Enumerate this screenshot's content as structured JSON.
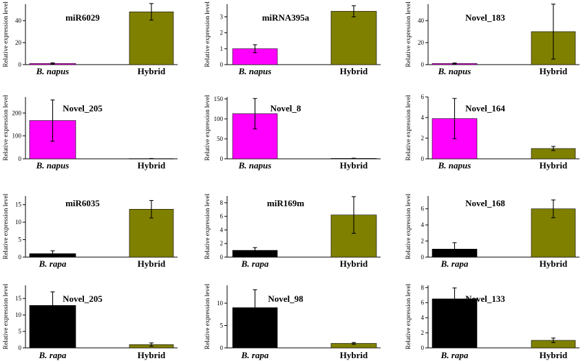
{
  "colors": {
    "bnapus": "#ff00ff",
    "brapa": "#000000",
    "hybrid": "#808000",
    "axis": "#000000"
  },
  "chart_data": [
    {
      "type": "bar",
      "title": "miR6029",
      "ylabel": "Relative expression level",
      "ylim": [
        0,
        55
      ],
      "yticks": [
        0,
        20,
        40
      ],
      "categories": [
        "B. napus",
        "Hybrid"
      ],
      "values": [
        1,
        48
      ],
      "errors": [
        0.6,
        7.5
      ],
      "colors": [
        "bnapus",
        "hybrid"
      ]
    },
    {
      "type": "bar",
      "title": "miRNA395a",
      "ylabel": "Relative expression level",
      "ylim": [
        0,
        3.8
      ],
      "yticks": [
        0,
        1,
        2,
        3
      ],
      "categories": [
        "B. napus",
        "Hybrid"
      ],
      "values": [
        1,
        3.35
      ],
      "errors": [
        0.25,
        0.35
      ],
      "colors": [
        "bnapus",
        "hybrid"
      ]
    },
    {
      "type": "bar",
      "title": "Novel_183",
      "ylabel": "Relative expression level",
      "ylim": [
        0,
        55
      ],
      "yticks": [
        0,
        20,
        40
      ],
      "categories": [
        "B. napus",
        "Hybrid"
      ],
      "values": [
        1,
        30
      ],
      "errors": [
        0.5,
        25
      ],
      "colors": [
        "bnapus",
        "hybrid"
      ]
    },
    {
      "type": "bar",
      "title": "Novel_205",
      "ylabel": "Relative expression level",
      "ylim": [
        0,
        270
      ],
      "yticks": [
        0,
        100,
        200
      ],
      "categories": [
        "B. napus",
        "Hybrid"
      ],
      "values": [
        167,
        1
      ],
      "errors": [
        90,
        0.5
      ],
      "colors": [
        "bnapus",
        "hybrid"
      ]
    },
    {
      "type": "bar",
      "title": "Novel_8",
      "ylabel": "Relative expression level",
      "ylim": [
        0,
        155
      ],
      "yticks": [
        0,
        50,
        100,
        150
      ],
      "categories": [
        "B. napus",
        "Hybrid"
      ],
      "values": [
        113,
        1
      ],
      "errors": [
        38,
        0.5
      ],
      "colors": [
        "bnapus",
        "hybrid"
      ]
    },
    {
      "type": "bar",
      "title": "Novel_164",
      "ylabel": "Relative expression level",
      "ylim": [
        0,
        6
      ],
      "yticks": [
        0,
        2,
        4,
        6
      ],
      "categories": [
        "B. napus",
        "Hybrid"
      ],
      "values": [
        3.9,
        1
      ],
      "errors": [
        1.95,
        0.2
      ],
      "colors": [
        "bnapus",
        "hybrid"
      ]
    },
    {
      "type": "bar",
      "title": "miR6035",
      "ylabel": "Relative expression level",
      "ylim": [
        0,
        17.5
      ],
      "yticks": [
        0,
        5,
        10,
        15
      ],
      "categories": [
        "B. rapa",
        "Hybrid"
      ],
      "values": [
        1,
        13.7
      ],
      "errors": [
        0.8,
        2.5
      ],
      "colors": [
        "brapa",
        "hybrid"
      ]
    },
    {
      "type": "bar",
      "title": "miR169m",
      "ylabel": "Relative expression level",
      "ylim": [
        0,
        9
      ],
      "yticks": [
        0,
        2,
        4,
        6,
        8
      ],
      "categories": [
        "B. rapa",
        "Hybrid"
      ],
      "values": [
        1,
        6.2
      ],
      "errors": [
        0.4,
        2.7
      ],
      "colors": [
        "brapa",
        "hybrid"
      ]
    },
    {
      "type": "bar",
      "title": "Novel_168",
      "ylabel": "Relative expression level",
      "ylim": [
        0,
        7.6
      ],
      "yticks": [
        0,
        2,
        4,
        6
      ],
      "categories": [
        "B. rapa",
        "Hybrid"
      ],
      "values": [
        1,
        6
      ],
      "errors": [
        0.8,
        1.1
      ],
      "colors": [
        "brapa",
        "hybrid"
      ]
    },
    {
      "type": "bar",
      "title": "Novel_205",
      "ylabel": "Relative expression level",
      "ylim": [
        0,
        19
      ],
      "yticks": [
        0,
        5,
        10,
        15
      ],
      "categories": [
        "B. rapa",
        "Hybrid"
      ],
      "values": [
        12.9,
        1
      ],
      "errors": [
        4.1,
        0.5
      ],
      "colors": [
        "brapa",
        "hybrid"
      ]
    },
    {
      "type": "bar",
      "title": "Novel_98",
      "ylabel": "Relative expression level",
      "ylim": [
        0,
        14
      ],
      "yticks": [
        0,
        5,
        10
      ],
      "categories": [
        "B. rapa",
        "Hybrid"
      ],
      "values": [
        9,
        1
      ],
      "errors": [
        4,
        0.2
      ],
      "colors": [
        "brapa",
        "hybrid"
      ]
    },
    {
      "type": "bar",
      "title": "Novel_133",
      "ylabel": "Relative expression level",
      "ylim": [
        0,
        8.3
      ],
      "yticks": [
        0,
        2,
        4,
        6,
        8
      ],
      "categories": [
        "B. rapa",
        "Hybrid"
      ],
      "values": [
        6.5,
        1
      ],
      "errors": [
        1.45,
        0.3
      ],
      "colors": [
        "brapa",
        "hybrid"
      ]
    }
  ]
}
